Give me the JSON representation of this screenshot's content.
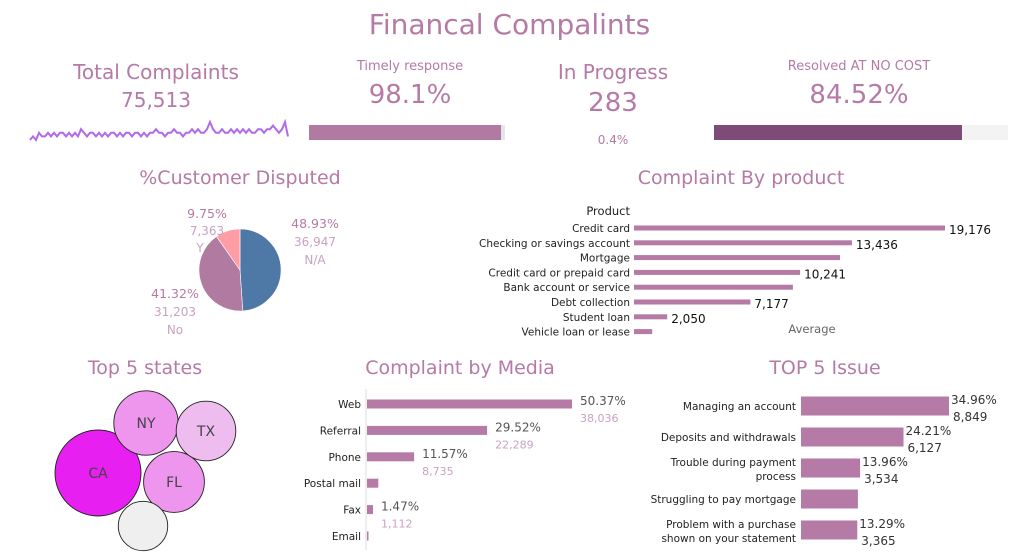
{
  "dashboard": {
    "title": "Financal Compalints"
  },
  "kpis": {
    "total_complaints": {
      "label": "Total Complaints",
      "value": "75,513"
    },
    "timely_response": {
      "label": "Timely response",
      "value": "98.1%",
      "fraction": 0.981
    },
    "in_progress": {
      "label": "In Progress",
      "value": "283",
      "percent_text": "0.4%"
    },
    "resolved": {
      "label": "Resolved AT NO COST",
      "value": "84.52%",
      "fraction": 0.8452
    }
  },
  "colors": {
    "accent": "#b57aa6",
    "bar": "#b57aa6",
    "resolved_bar": "#7e4a78",
    "sparkline": "#b36ae8",
    "pie_na": "#4e79a7",
    "pie_no": "#b07aa1",
    "pie_y": "#ff9da7"
  },
  "chart_data": [
    {
      "id": "total-trend",
      "type": "line",
      "title": "",
      "note": "sparkline without axes",
      "values": [
        1,
        2,
        1,
        3,
        2,
        2,
        3,
        2,
        3,
        2,
        3,
        3,
        2,
        3,
        2,
        3,
        2,
        4,
        3,
        2,
        3,
        3,
        2,
        3,
        2,
        3,
        2,
        3,
        3,
        2,
        3,
        2,
        3,
        3,
        2,
        3,
        3,
        2,
        3,
        2,
        3,
        3,
        4,
        3,
        3,
        2,
        3,
        3,
        4,
        3,
        3,
        2,
        3,
        3,
        4,
        3,
        4,
        3,
        3,
        4,
        6,
        4,
        3,
        3,
        4,
        3,
        3,
        4,
        3,
        4,
        3,
        4,
        3,
        4,
        3,
        3,
        4,
        4,
        3,
        4,
        4,
        5,
        4,
        3,
        4,
        6,
        2
      ]
    },
    {
      "id": "customer-disputed",
      "type": "pie",
      "title": "%Customer Disputed",
      "slices": [
        {
          "label": "N/A",
          "value": 36947,
          "percent": "48.93%",
          "value_text": "36,947"
        },
        {
          "label": "No",
          "value": 31203,
          "percent": "41.32%",
          "value_text": "31,203"
        },
        {
          "label": "Y",
          "value": 7363,
          "percent": "9.75%",
          "value_text": "7,363"
        }
      ]
    },
    {
      "id": "complaint-by-product",
      "type": "bar",
      "orientation": "horizontal",
      "title": "Complaint By product",
      "category_header": "Product",
      "reference_label": "Average",
      "categories": [
        "Credit card",
        "Checking or savings account",
        "Mortgage",
        "Credit card or prepaid card",
        "Bank account or service",
        "Debt collection",
        "Student loan",
        "Vehicle loan or lease"
      ],
      "values": [
        19176,
        13436,
        12700,
        10241,
        9800,
        7177,
        2050,
        1120
      ],
      "value_labels": [
        "19,176",
        "13,436",
        "",
        "10,241",
        "",
        "7,177",
        "2,050",
        ""
      ],
      "xlim": [
        0,
        19176
      ]
    },
    {
      "id": "top-5-states",
      "type": "bubble",
      "title": "Top 5 states",
      "items": [
        {
          "label": "CA",
          "value": 100,
          "color": "#e71ff0"
        },
        {
          "label": "NY",
          "value": 56,
          "color": "#ee96ee"
        },
        {
          "label": "FL",
          "value": 50,
          "color": "#ee96ee"
        },
        {
          "label": "TX",
          "value": 48,
          "color": "#eebcee"
        },
        {
          "label": "",
          "value": 33,
          "color": "#efefef"
        }
      ]
    },
    {
      "id": "complaint-by-media",
      "type": "bar",
      "orientation": "horizontal",
      "title": "Complaint by Media",
      "categories": [
        "Web",
        "Referral",
        "Phone",
        "Postal mail",
        "Fax",
        "Email"
      ],
      "values": [
        38036,
        22289,
        8735,
        2100,
        1112,
        200
      ],
      "percent_labels": [
        "50.37%",
        "29.52%",
        "11.57%",
        "",
        "1.47%",
        ""
      ],
      "value_labels": [
        "38,036",
        "22,289",
        "8,735",
        "",
        "1,112",
        ""
      ],
      "xlim": [
        0,
        38036
      ]
    },
    {
      "id": "top-5-issue",
      "type": "bar",
      "orientation": "horizontal",
      "title": "TOP 5 Issue",
      "categories": [
        [
          "Managing an account"
        ],
        [
          "Deposits and withdrawals"
        ],
        [
          "Trouble during payment",
          "process"
        ],
        [
          "Struggling to pay mortgage"
        ],
        [
          "Problem with a purchase",
          "shown on your statement"
        ]
      ],
      "values": [
        8849,
        6127,
        3534,
        3400,
        3365
      ],
      "percent_labels": [
        "34.96%",
        "24.21%",
        "13.96%",
        "",
        "13.29%"
      ],
      "value_labels": [
        "8,849",
        "6,127",
        "3,534",
        "",
        "3,365"
      ],
      "xlim": [
        0,
        8849
      ]
    }
  ]
}
